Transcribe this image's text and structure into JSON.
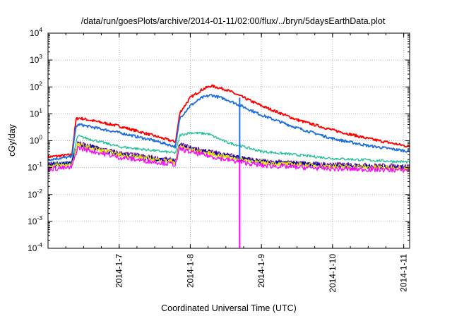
{
  "chart_data": {
    "type": "line",
    "title": "/data/run/goesPlots/archive/2014-01-11/02:00/flux/../bryn/5daysEarthData.plot",
    "xlabel": "Coordinated Universal Time (UTC)",
    "ylabel": "cGy/day",
    "yscale": "log",
    "ylim": [
      0.0001,
      10000
    ],
    "y_ticks": [
      {
        "base": "10",
        "exp": "-4",
        "value": 0.0001
      },
      {
        "base": "10",
        "exp": "-3",
        "value": 0.001
      },
      {
        "base": "10",
        "exp": "-2",
        "value": 0.01
      },
      {
        "base": "10",
        "exp": "-1",
        "value": 0.1
      },
      {
        "base": "10",
        "exp": "0",
        "value": 1
      },
      {
        "base": "10",
        "exp": "1",
        "value": 10
      },
      {
        "base": "10",
        "exp": "2",
        "value": 100
      },
      {
        "base": "10",
        "exp": "3",
        "value": 1000
      },
      {
        "base": "10",
        "exp": "4",
        "value": 10000
      }
    ],
    "xlim": [
      "2014-01-06 00:00",
      "2014-01-11 02:00"
    ],
    "x_ticks": [
      "2014-1-7",
      "2014-1-8",
      "2014-1-9",
      "2014-1-10",
      "2014-1-11"
    ],
    "x_tick_dates": [
      "2014-01-07",
      "2014-01-08",
      "2014-01-09",
      "2014-01-10",
      "2014-01-11"
    ],
    "grid": true,
    "legend": "none",
    "series": [
      {
        "color": "#ff0000",
        "x": [
          "2014-01-06 00:00",
          "2014-01-06 08:00",
          "2014-01-06 09:30",
          "2014-01-06 10:30",
          "2014-01-07 00:00",
          "2014-01-07 12:00",
          "2014-01-07 19:00",
          "2014-01-07 20:30",
          "2014-01-08 00:00",
          "2014-01-08 04:00",
          "2014-01-08 07:00",
          "2014-01-08 12:00",
          "2014-01-08 18:00",
          "2014-01-09 00:00",
          "2014-01-09 12:00",
          "2014-01-10 00:00",
          "2014-01-10 12:00",
          "2014-01-11 02:00"
        ],
        "values": [
          0.25,
          0.3,
          6.5,
          7,
          3.5,
          1.5,
          0.9,
          11,
          40,
          80,
          110,
          80,
          40,
          20,
          6,
          2.5,
          1.2,
          0.6
        ]
      },
      {
        "color": "#1f6fe0",
        "x": [
          "2014-01-06 00:00",
          "2014-01-06 08:00",
          "2014-01-06 09:30",
          "2014-01-06 10:30",
          "2014-01-07 00:00",
          "2014-01-07 12:00",
          "2014-01-07 19:00",
          "2014-01-07 20:30",
          "2014-01-08 00:00",
          "2014-01-08 04:00",
          "2014-01-08 07:00",
          "2014-01-08 12:00",
          "2014-01-08 18:00",
          "2014-01-09 00:00",
          "2014-01-09 12:00",
          "2014-01-10 00:00",
          "2014-01-10 12:00",
          "2014-01-11 02:00"
        ],
        "values": [
          0.2,
          0.25,
          3.5,
          4,
          2,
          1,
          0.6,
          7,
          20,
          40,
          50,
          35,
          18,
          9,
          3,
          1.2,
          0.65,
          0.4
        ]
      },
      {
        "color": "#1fbf99",
        "x": [
          "2014-01-06 00:00",
          "2014-01-06 08:00",
          "2014-01-06 10:00",
          "2014-01-07 00:00",
          "2014-01-07 19:00",
          "2014-01-07 20:30",
          "2014-01-08 00:00",
          "2014-01-08 06:00",
          "2014-01-08 12:00",
          "2014-01-09 00:00",
          "2014-01-10 00:00",
          "2014-01-11 02:00"
        ],
        "values": [
          0.14,
          0.16,
          1.5,
          0.6,
          0.35,
          1.6,
          2,
          1.8,
          0.9,
          0.4,
          0.22,
          0.16
        ]
      },
      {
        "color": "#7a1fa0",
        "x": [
          "2014-01-06 00:00",
          "2014-01-06 08:00",
          "2014-01-06 10:00",
          "2014-01-07 00:00",
          "2014-01-07 19:00",
          "2014-01-07 20:30",
          "2014-01-08 00:00",
          "2014-01-08 12:00",
          "2014-01-09 00:00",
          "2014-01-10 00:00",
          "2014-01-11 02:00"
        ],
        "values": [
          0.13,
          0.15,
          0.8,
          0.35,
          0.18,
          0.75,
          0.55,
          0.3,
          0.17,
          0.13,
          0.11
        ]
      },
      {
        "color": "#0000a0",
        "x": [
          "2014-01-06 00:00",
          "2014-01-06 08:00",
          "2014-01-06 10:00",
          "2014-01-07 00:00",
          "2014-01-07 19:00",
          "2014-01-07 20:30",
          "2014-01-08 00:00",
          "2014-01-08 12:00",
          "2014-01-09 00:00",
          "2014-01-10 00:00",
          "2014-01-11 02:00"
        ],
        "values": [
          0.12,
          0.14,
          0.75,
          0.32,
          0.17,
          0.7,
          0.5,
          0.28,
          0.16,
          0.12,
          0.1
        ]
      },
      {
        "color": "#e8e000",
        "x": [
          "2014-01-06 00:00",
          "2014-01-06 08:00",
          "2014-01-06 10:00",
          "2014-01-07 00:00",
          "2014-01-07 19:00",
          "2014-01-07 20:30",
          "2014-01-08 00:00",
          "2014-01-08 12:00",
          "2014-01-09 00:00",
          "2014-01-10 00:00",
          "2014-01-11 02:00"
        ],
        "values": [
          0.11,
          0.13,
          0.7,
          0.3,
          0.16,
          0.65,
          0.45,
          0.25,
          0.15,
          0.11,
          0.095
        ]
      },
      {
        "color": "#ff00ff",
        "x": [
          "2014-01-06 00:00",
          "2014-01-06 08:00",
          "2014-01-06 10:00",
          "2014-01-07 00:00",
          "2014-01-07 19:00",
          "2014-01-07 20:30",
          "2014-01-08 00:00",
          "2014-01-08 12:00",
          "2014-01-09 00:00",
          "2014-01-10 00:00",
          "2014-01-11 02:00"
        ],
        "values": [
          0.09,
          0.1,
          0.55,
          0.24,
          0.13,
          0.5,
          0.38,
          0.2,
          0.12,
          0.09,
          0.08
        ]
      }
    ],
    "annotations": [
      {
        "type": "drop",
        "color": "#1f6fe0",
        "x": "2014-01-08 16:40",
        "y_from": 40,
        "y_to": 0.15
      },
      {
        "type": "drop",
        "color": "#ff00ff",
        "x": "2014-01-08 16:40",
        "y_from": 0.2,
        "y_to": 0.0001
      }
    ]
  }
}
